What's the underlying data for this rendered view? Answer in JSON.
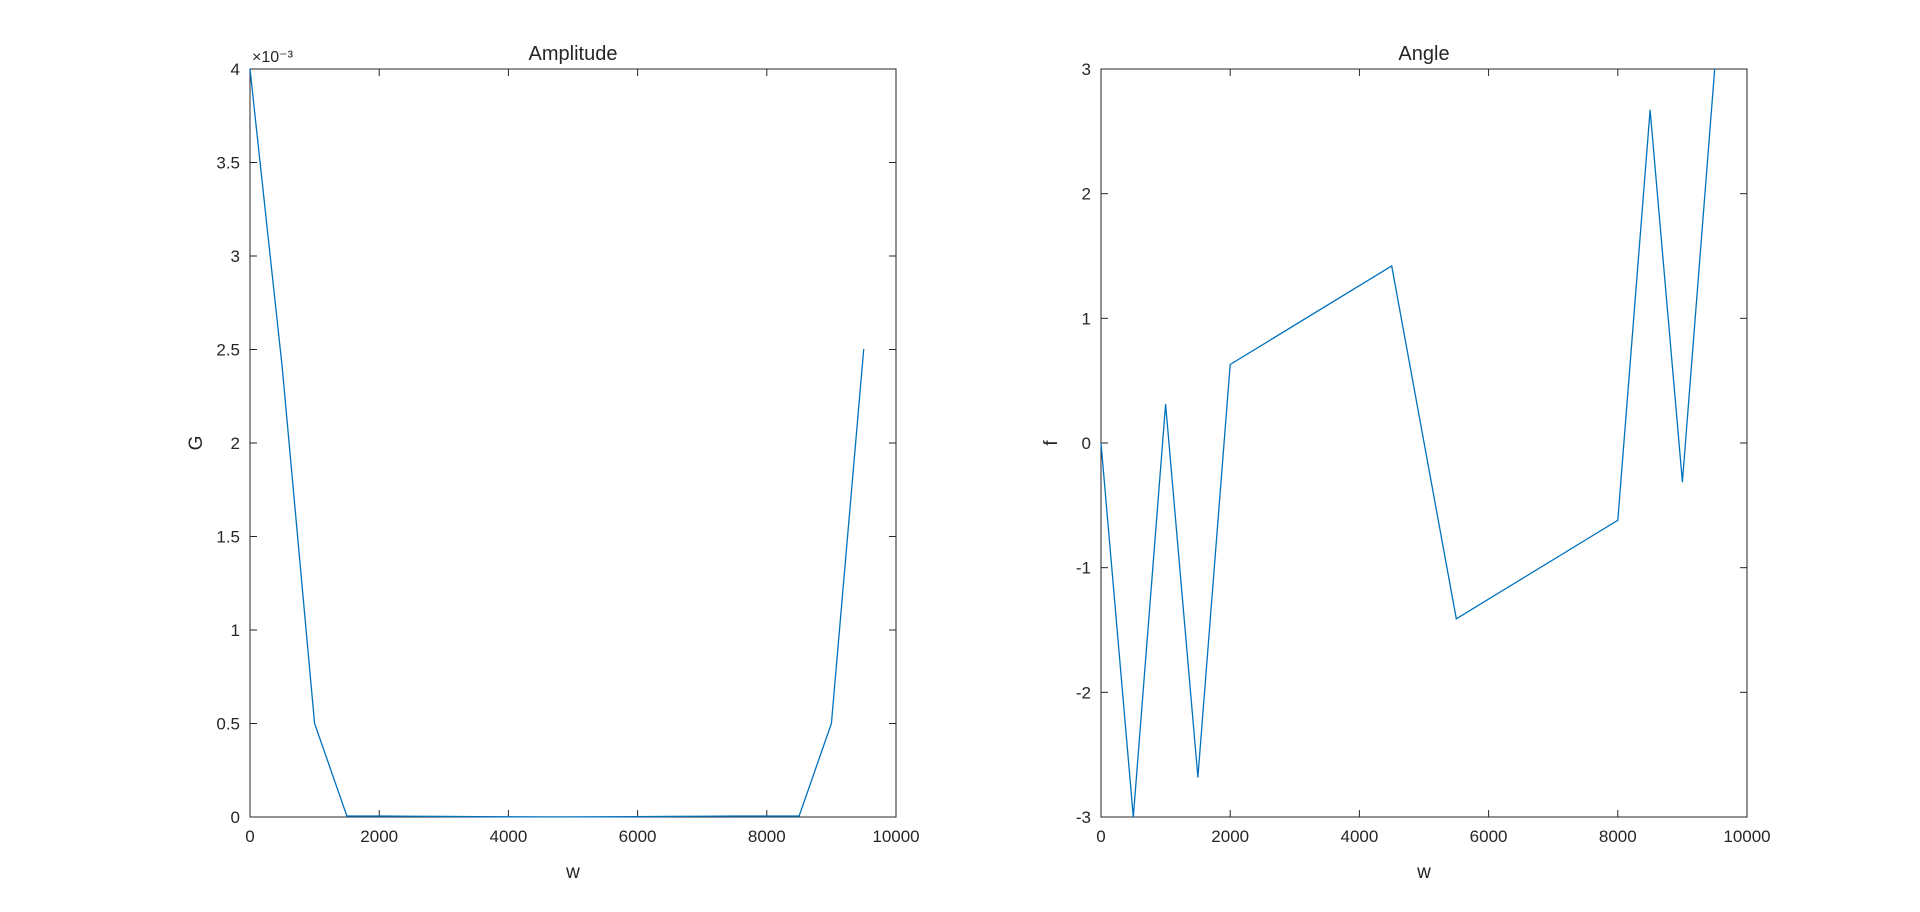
{
  "chart_data": [
    {
      "type": "line",
      "title": "Amplitude",
      "xlabel": "w",
      "ylabel": "G",
      "xlim": [
        0,
        10000
      ],
      "ylim": [
        0,
        0.004
      ],
      "xticks": [
        "0",
        "2000",
        "4000",
        "6000",
        "8000",
        "10000"
      ],
      "yticks": [
        "0",
        "0.5",
        "1",
        "1.5",
        "2",
        "2.5",
        "3",
        "3.5",
        "4"
      ],
      "y_exponent_label": "×10⁻³",
      "grid": false,
      "series": [
        {
          "color": "#0072BD",
          "x": [
            0,
            500,
            1000,
            1500,
            2000,
            2500,
            3000,
            3500,
            4000,
            4500,
            5000,
            5500,
            6000,
            6500,
            7000,
            7500,
            8000,
            8500,
            9000,
            9500
          ],
          "y": [
            0.004,
            0.0024,
            0.0005,
            5e-06,
            5e-06,
            4e-06,
            3e-06,
            2e-06,
            1e-06,
            5e-07,
            5e-07,
            1e-06,
            2e-06,
            3e-06,
            4e-06,
            5e-06,
            5e-06,
            5e-06,
            0.0005,
            0.0025
          ]
        }
      ]
    },
    {
      "type": "line",
      "title": "Angle",
      "xlabel": "w",
      "ylabel": "f",
      "xlim": [
        0,
        10000
      ],
      "ylim": [
        -3,
        3
      ],
      "xticks": [
        "0",
        "2000",
        "4000",
        "6000",
        "8000",
        "10000"
      ],
      "yticks": [
        "-3",
        "-2",
        "-1",
        "0",
        "1",
        "2",
        "3"
      ],
      "grid": false,
      "series": [
        {
          "color": "#0072BD",
          "x": [
            0,
            500,
            1000,
            1500,
            2000,
            4500,
            5500,
            8000,
            8500,
            9000,
            9500
          ],
          "y": [
            0,
            -3.0,
            0.31,
            -2.68,
            0.63,
            1.42,
            -1.41,
            -0.62,
            2.67,
            -0.31,
            3.0
          ]
        }
      ]
    }
  ]
}
